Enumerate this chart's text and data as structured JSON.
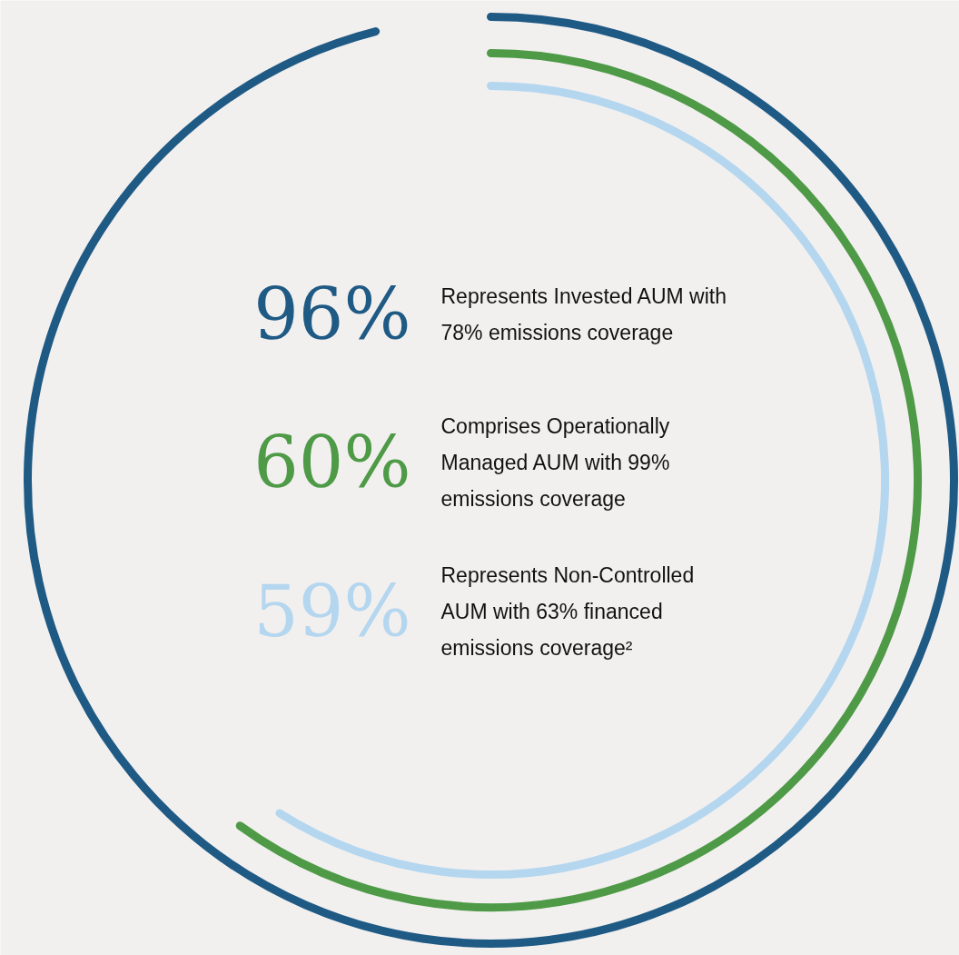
{
  "chart_data": {
    "type": "other",
    "categories": [
      "Represents Invested AUM with 78% emissions coverage",
      "Comprises Operationally Managed AUM with 99% emissions coverage",
      "Represents Non-Controlled AUM with 63% financed emissions coverage²"
    ],
    "values": [
      96,
      60,
      59
    ],
    "value_labels": [
      "96%",
      "60%",
      "59%"
    ],
    "colors": [
      "#1f5a85",
      "#4e9a47",
      "#b4d6ef"
    ]
  }
}
